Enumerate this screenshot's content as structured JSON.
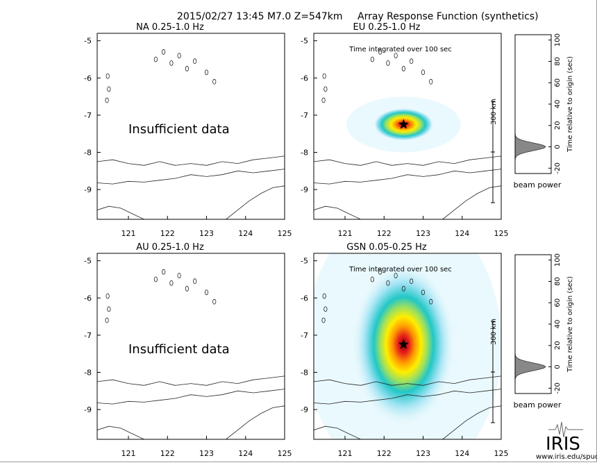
{
  "header": {
    "event": "2015/02/27 13:45  M7.0  Z=547km",
    "product": "Array Response Function (synthetics)"
  },
  "panels": [
    {
      "id": "na",
      "title": "NA  0.25-1.0 Hz",
      "status": "Insufficient data"
    },
    {
      "id": "eu",
      "title": "EU  0.25-1.0 Hz",
      "note": "Time integrated over 100 sec",
      "scale_label": "300 km"
    },
    {
      "id": "au",
      "title": "AU  0.25-1.0 Hz",
      "status": "Insufficient data"
    },
    {
      "id": "gsn",
      "title": "GSN  0.05-0.25 Hz",
      "note": "Time integrated over 100 sec",
      "scale_label": "300 km"
    }
  ],
  "beam": {
    "xlabel": "beam power",
    "ylabel": "Time relative to origin (sec)"
  },
  "logo": {
    "text": "IRIS",
    "url": "www.iris.edu/spud"
  },
  "chart_data": [
    {
      "type": "heatmap",
      "name": "NA",
      "title": "NA  0.25-1.0 Hz",
      "x_ticks": [
        121,
        122,
        123,
        124,
        125
      ],
      "y_ticks": [
        -5,
        -6,
        -7,
        -8,
        -9
      ],
      "xlim": [
        120.2,
        125
      ],
      "ylim": [
        -9.8,
        -4.8
      ],
      "annotation": "Insufficient data"
    },
    {
      "type": "heatmap",
      "name": "EU",
      "title": "EU  0.25-1.0 Hz",
      "x_ticks": [
        121,
        122,
        123,
        124,
        125
      ],
      "y_ticks": [
        -5,
        -6,
        -7,
        -8,
        -9
      ],
      "xlim": [
        120.2,
        125
      ],
      "ylim": [
        -9.8,
        -4.8
      ],
      "peak": {
        "lon": 122.5,
        "lat": -7.25
      },
      "spread": {
        "lon": 0.35,
        "lat": 0.22
      },
      "annotation": "Time integrated over 100 sec",
      "scale_bar": "300 km"
    },
    {
      "type": "line",
      "name": "EU beam power",
      "xlabel": "beam power",
      "ylabel": "Time relative to origin (sec)",
      "y_ticks": [
        -20,
        0,
        20,
        40,
        60,
        80,
        100
      ],
      "ylim": [
        -25,
        105
      ],
      "peak_time": 0,
      "peak_power": 1.0
    },
    {
      "type": "heatmap",
      "name": "AU",
      "title": "AU  0.25-1.0 Hz",
      "x_ticks": [
        121,
        122,
        123,
        124,
        125
      ],
      "y_ticks": [
        -5,
        -6,
        -7,
        -8,
        -9
      ],
      "xlim": [
        120.2,
        125
      ],
      "ylim": [
        -9.8,
        -4.8
      ],
      "annotation": "Insufficient data"
    },
    {
      "type": "heatmap",
      "name": "GSN",
      "title": "GSN  0.05-0.25 Hz",
      "x_ticks": [
        121,
        122,
        123,
        124,
        125
      ],
      "y_ticks": [
        -5,
        -6,
        -7,
        -8,
        -9
      ],
      "xlim": [
        120.2,
        125
      ],
      "ylim": [
        -9.8,
        -4.8
      ],
      "peak": {
        "lon": 122.5,
        "lat": -7.25
      },
      "spread": {
        "lon": 0.6,
        "lat": 1.1
      },
      "annotation": "Time integrated over 100 sec",
      "scale_bar": "300 km"
    },
    {
      "type": "line",
      "name": "GSN beam power",
      "xlabel": "beam power",
      "ylabel": "Time relative to origin (sec)",
      "y_ticks": [
        -20,
        0,
        20,
        40,
        60,
        80,
        100
      ],
      "ylim": [
        -25,
        105
      ],
      "peak_time": 0,
      "peak_power": 1.0
    }
  ]
}
